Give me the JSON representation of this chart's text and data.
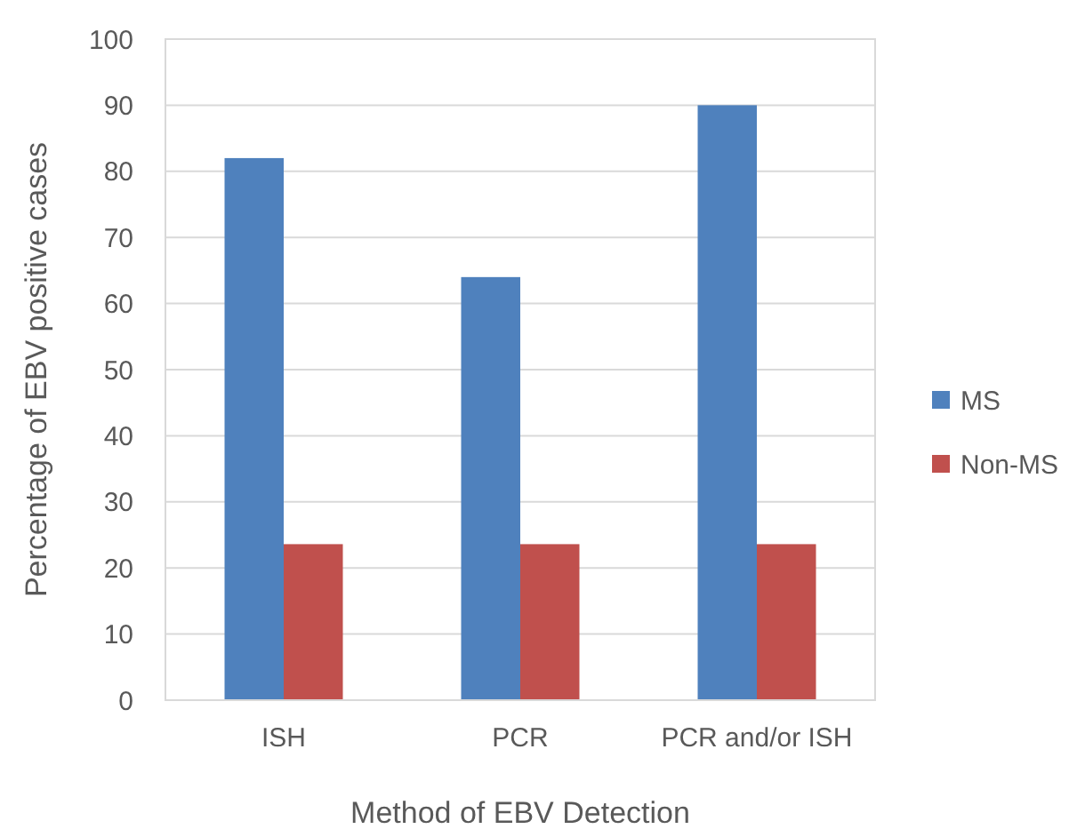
{
  "chart_data": {
    "type": "bar",
    "xlabel": "Method of EBV Detection",
    "ylabel": "Percentage of EBV positive cases",
    "categories": [
      "ISH",
      "PCR",
      "PCR and/or ISH"
    ],
    "series": [
      {
        "name": "MS",
        "color": "#4f81bd",
        "values": [
          82,
          64,
          90
        ]
      },
      {
        "name": "Non-MS",
        "color": "#c0504d",
        "values": [
          23.6,
          23.6,
          23.6
        ]
      }
    ],
    "ylim": [
      0,
      100
    ],
    "yticks": [
      0,
      10,
      20,
      30,
      40,
      50,
      60,
      70,
      80,
      90,
      100
    ],
    "grid": "y",
    "legend": "right"
  }
}
